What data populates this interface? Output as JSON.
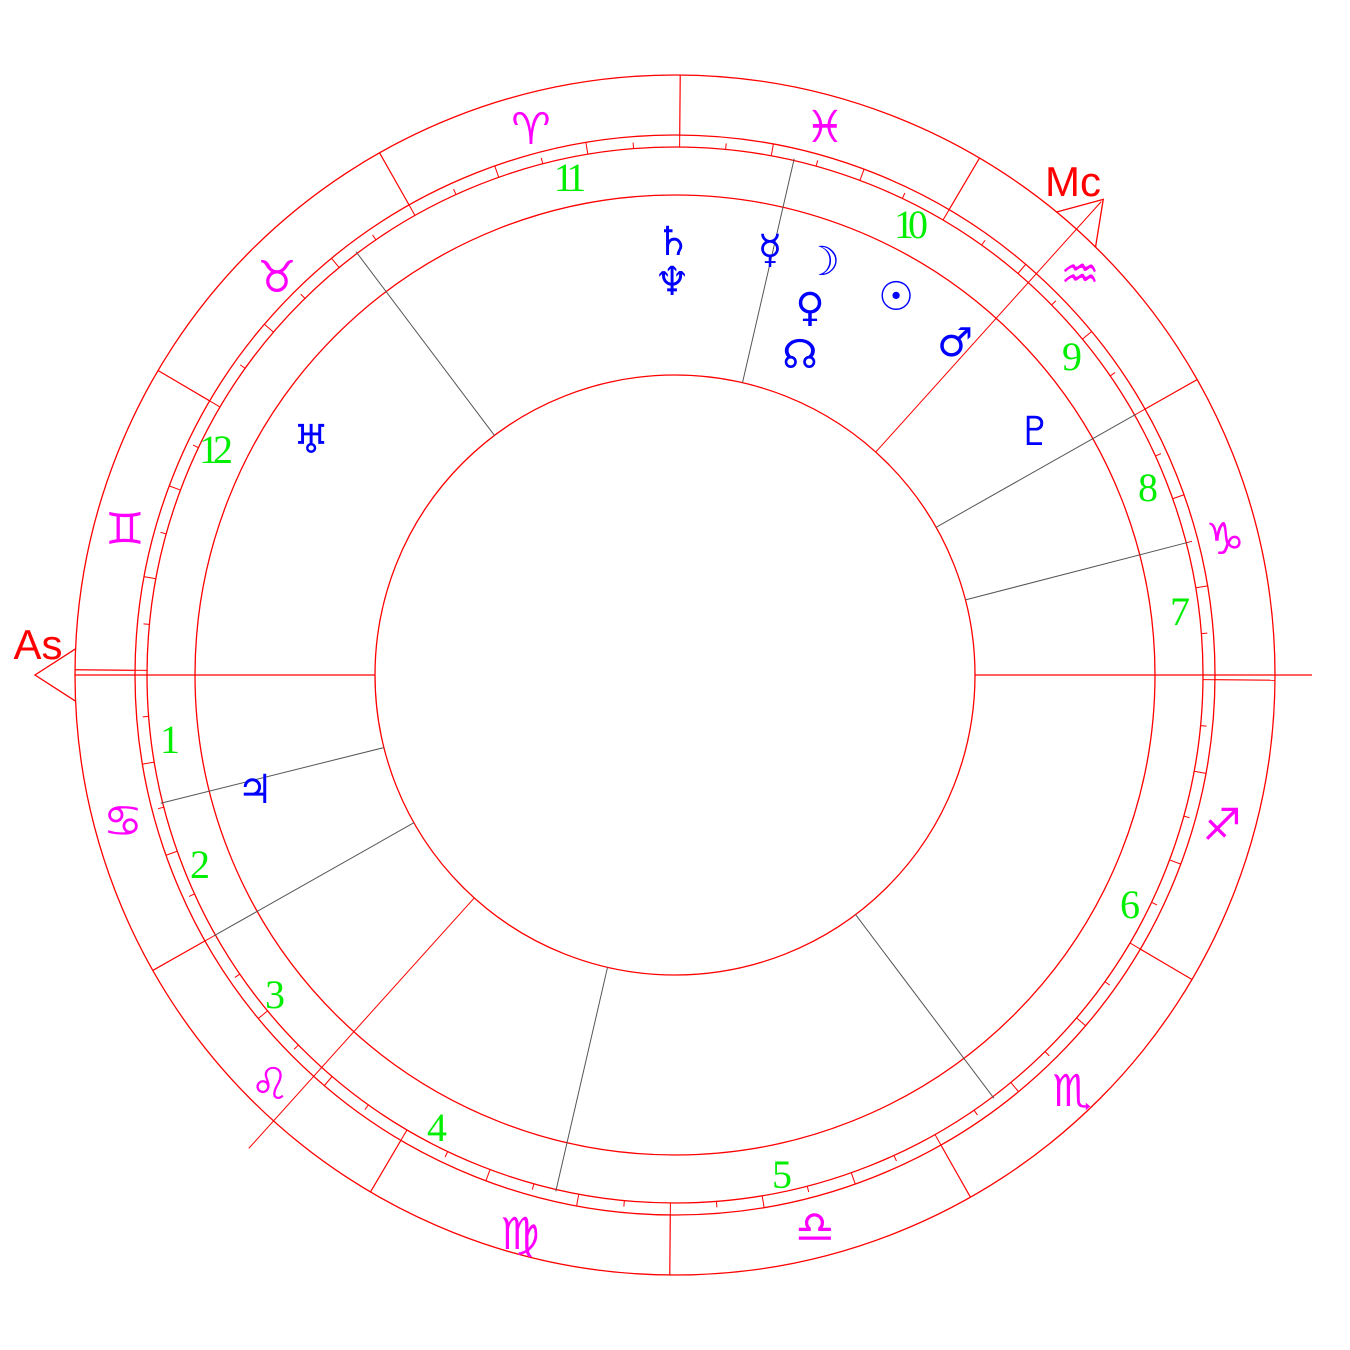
{
  "colors": {
    "ring": "#ff0000",
    "signs": "#ff00ff",
    "houses": "#00ee00",
    "planets": "#0000ff",
    "cusps": "#555555"
  },
  "axes": {
    "ascendant": "As",
    "midheaven": "Mc"
  },
  "signs": [
    {
      "name": "aries",
      "glyph": "♈"
    },
    {
      "name": "taurus",
      "glyph": "♉"
    },
    {
      "name": "gemini",
      "glyph": "♊"
    },
    {
      "name": "cancer",
      "glyph": "♋"
    },
    {
      "name": "leo",
      "glyph": "♌"
    },
    {
      "name": "virgo",
      "glyph": "♍"
    },
    {
      "name": "libra",
      "glyph": "♎"
    },
    {
      "name": "scorpio",
      "glyph": "♏"
    },
    {
      "name": "sagittarius",
      "glyph": "♐"
    },
    {
      "name": "capricorn",
      "glyph": "♑"
    },
    {
      "name": "aquarius",
      "glyph": "♒"
    },
    {
      "name": "pisces",
      "glyph": "♓"
    }
  ],
  "houses": [
    "1",
    "2",
    "3",
    "4",
    "5",
    "6",
    "7",
    "8",
    "9",
    "10",
    "11",
    "12"
  ],
  "planets": [
    {
      "name": "saturn",
      "glyph": "♄"
    },
    {
      "name": "neptune",
      "glyph": "♆"
    },
    {
      "name": "mercury",
      "glyph": "☿"
    },
    {
      "name": "moon",
      "glyph": "☽"
    },
    {
      "name": "venus",
      "glyph": "♀"
    },
    {
      "name": "sun",
      "glyph": "☉"
    },
    {
      "name": "mars",
      "glyph": "♂"
    },
    {
      "name": "north-node",
      "glyph": "☊"
    },
    {
      "name": "pluto",
      "glyph": "♇"
    },
    {
      "name": "uranus",
      "glyph": "♅"
    },
    {
      "name": "jupiter",
      "glyph": "♃"
    }
  ]
}
